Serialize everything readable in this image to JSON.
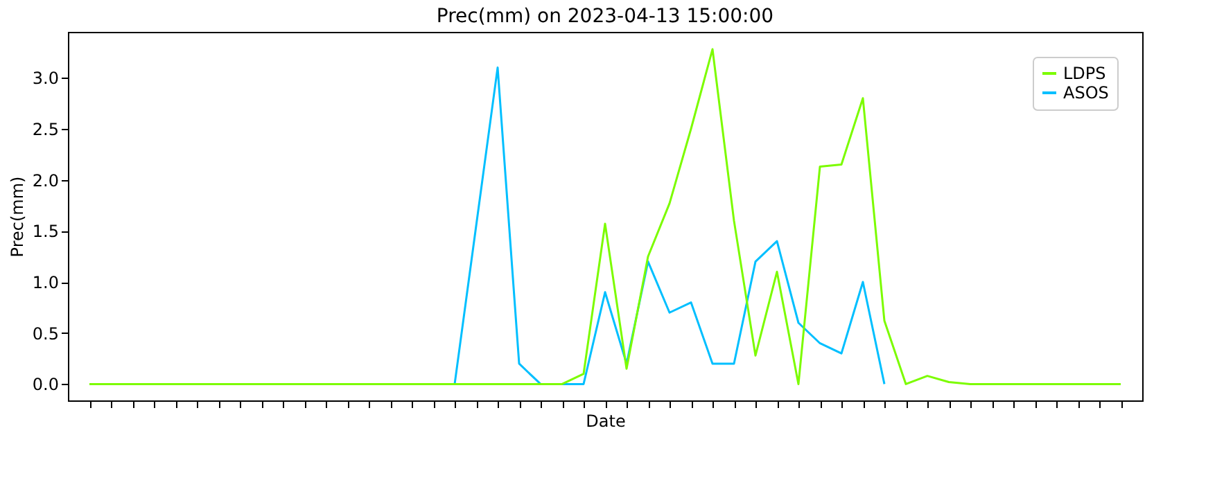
{
  "chart_data": {
    "type": "line",
    "title": "Prec(mm) on 2023-04-13 15:00:00",
    "xlabel": "Date",
    "ylabel": "Prec(mm)",
    "categories": [
      null,
      null,
      null,
      null,
      null,
      null,
      null,
      null,
      null,
      null,
      null,
      null,
      null,
      null,
      null,
      null,
      null,
      null,
      null,
      null,
      null,
      null,
      null,
      null,
      null,
      null,
      null,
      null,
      null,
      null,
      null,
      null,
      null,
      null,
      null,
      null,
      null,
      null,
      null,
      null,
      null,
      null,
      null,
      null,
      null,
      null,
      null,
      null,
      null
    ],
    "series": [
      {
        "name": "LDPS",
        "color": "#7cfc00",
        "values": [
          0,
          0,
          0,
          0,
          0,
          0,
          0,
          0,
          0,
          0,
          0,
          0,
          0,
          0,
          0,
          0,
          0,
          0,
          0,
          0,
          0,
          0,
          0,
          0.1,
          1.57,
          0.15,
          1.25,
          1.77,
          2.5,
          3.28,
          1.6,
          0.28,
          1.1,
          0,
          2.13,
          2.15,
          2.8,
          0.62,
          0,
          0.08,
          0.02,
          0,
          0,
          0,
          0,
          0,
          0,
          0,
          0
        ]
      },
      {
        "name": "ASOS",
        "color": "#00bfff",
        "values": [
          null,
          null,
          null,
          null,
          null,
          null,
          null,
          null,
          null,
          null,
          null,
          null,
          null,
          null,
          null,
          null,
          null,
          0,
          1.55,
          3.1,
          0.2,
          0,
          0,
          0,
          0.9,
          0.2,
          1.2,
          0.7,
          0.8,
          0.2,
          0.2,
          1.2,
          1.4,
          0.6,
          0.4,
          0.3,
          1.0,
          0,
          null,
          null,
          null,
          null,
          null,
          null,
          null,
          null,
          null,
          null,
          null
        ]
      }
    ],
    "ylim": [
      -0.16,
      3.45
    ],
    "yticks": [
      {
        "value": 0,
        "label": "0.0"
      },
      {
        "value": 0.5,
        "label": "0.5"
      },
      {
        "value": 1,
        "label": "1.0"
      },
      {
        "value": 1.5,
        "label": "1.5"
      },
      {
        "value": 2,
        "label": "2.0"
      },
      {
        "value": 2.5,
        "label": "2.5"
      },
      {
        "value": 3,
        "label": "3.0"
      }
    ],
    "tick_labels": "y",
    "grid": false,
    "legend": "top right",
    "marker": "none",
    "line_style": "solid"
  }
}
